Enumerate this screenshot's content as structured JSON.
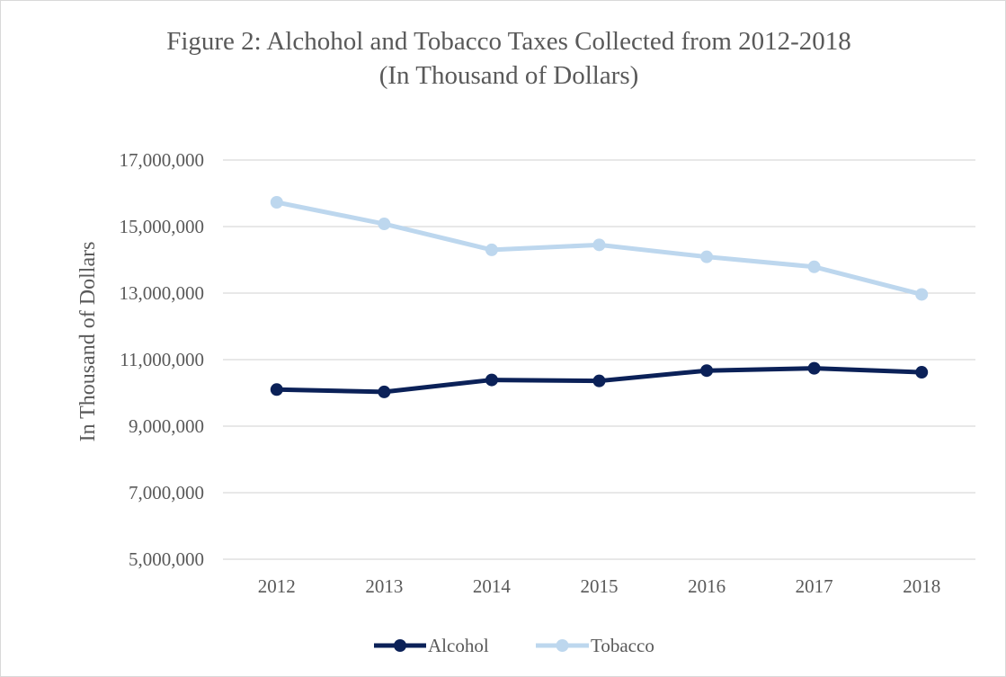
{
  "chart_data": {
    "type": "line",
    "title_lines": [
      "Figure 2: Alchohol and Tobacco Taxes Collected from 2012-2018",
      "(In Thousand of Dollars)"
    ],
    "xlabel": "",
    "ylabel": "In Thousand of Dollars",
    "categories": [
      "2012",
      "2013",
      "2014",
      "2015",
      "2016",
      "2017",
      "2018"
    ],
    "y_ticks": [
      5000000,
      7000000,
      9000000,
      11000000,
      13000000,
      15000000,
      17000000
    ],
    "y_tick_labels": [
      "5,000,000",
      "7,000,000",
      "9,000,000",
      "11,000,000",
      "13,000,000",
      "15,000,000",
      "17,000,000"
    ],
    "ylim": [
      5000000,
      17000000
    ],
    "grid": "horizontal",
    "legend_position": "bottom",
    "series": [
      {
        "name": "Alcohol",
        "color": "#0b2158",
        "values": [
          10100000,
          10030000,
          10390000,
          10360000,
          10670000,
          10740000,
          10620000
        ]
      },
      {
        "name": "Tobacco",
        "color": "#bdd7ee",
        "values": [
          15730000,
          15080000,
          14300000,
          14450000,
          14090000,
          13790000,
          12960000
        ]
      }
    ]
  }
}
